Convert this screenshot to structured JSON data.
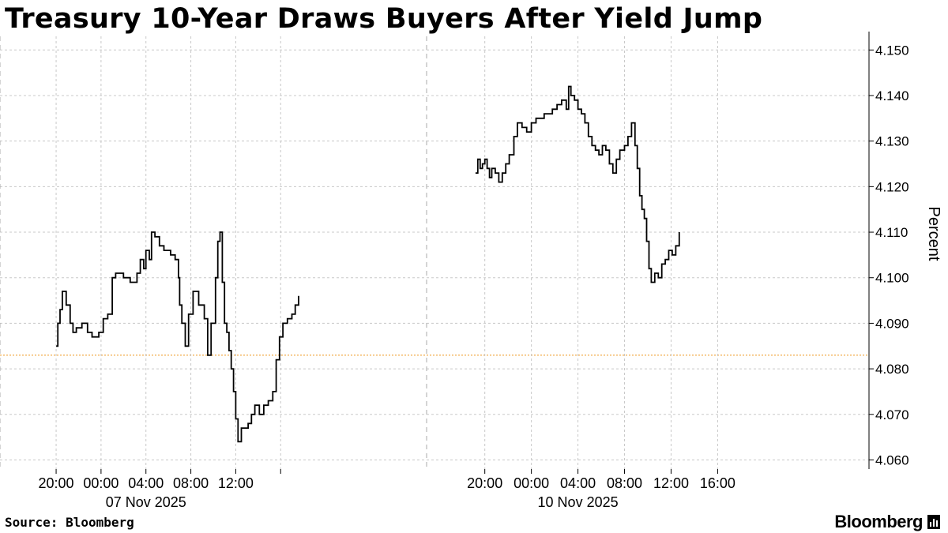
{
  "title": "Treasury 10-Year Draws Buyers After Yield Jump",
  "source": "Source: Bloomberg",
  "brand": "Bloomberg",
  "brand_icon": "bloomberg-logo-icon",
  "colors": {
    "line": "#000000",
    "reference": "#f0a030",
    "grid": "#c8c8c8",
    "text": "#000000"
  },
  "chart_data": {
    "type": "line",
    "title": "Treasury 10-Year Draws Buyers After Yield Jump",
    "ylabel": "Percent",
    "ylim": [
      4.058,
      4.153
    ],
    "yticks": [
      "4.060",
      "4.070",
      "4.080",
      "4.090",
      "4.100",
      "4.110",
      "4.120",
      "4.130",
      "4.140",
      "4.150"
    ],
    "ytick_values": [
      4.06,
      4.07,
      4.08,
      4.09,
      4.1,
      4.11,
      4.12,
      4.13,
      4.14,
      4.15
    ],
    "reference_line": 4.083,
    "grid": true,
    "panels": [
      {
        "date_label": "07 Nov 2025",
        "xlim": [
          -5,
          33
        ],
        "xticks": [
          {
            "h": 0,
            "label": "20:00"
          },
          {
            "h": 4,
            "label": "00:00"
          },
          {
            "h": 8,
            "label": "04:00"
          },
          {
            "h": 12,
            "label": "08:00"
          },
          {
            "h": 16,
            "label": "12:00"
          },
          {
            "h": 20,
            "label": ""
          }
        ],
        "series": [
          [
            0.0,
            4.085
          ],
          [
            0.15,
            4.09
          ],
          [
            0.35,
            4.093
          ],
          [
            0.55,
            4.097
          ],
          [
            0.9,
            4.094
          ],
          [
            1.25,
            4.09
          ],
          [
            1.5,
            4.088
          ],
          [
            1.8,
            4.089
          ],
          [
            2.0,
            4.089
          ],
          [
            2.3,
            4.09
          ],
          [
            2.8,
            4.088
          ],
          [
            3.2,
            4.087
          ],
          [
            3.5,
            4.087
          ],
          [
            3.8,
            4.088
          ],
          [
            4.2,
            4.091
          ],
          [
            4.6,
            4.092
          ],
          [
            5.0,
            4.1
          ],
          [
            5.3,
            4.101
          ],
          [
            5.6,
            4.101
          ],
          [
            6.0,
            4.1
          ],
          [
            6.6,
            4.099
          ],
          [
            7.2,
            4.101
          ],
          [
            7.5,
            4.104
          ],
          [
            7.8,
            4.102
          ],
          [
            8.0,
            4.106
          ],
          [
            8.3,
            4.104
          ],
          [
            8.5,
            4.11
          ],
          [
            8.8,
            4.109
          ],
          [
            9.2,
            4.107
          ],
          [
            9.6,
            4.106
          ],
          [
            10.2,
            4.105
          ],
          [
            10.6,
            4.104
          ],
          [
            10.9,
            4.1
          ],
          [
            11.0,
            4.094
          ],
          [
            11.2,
            4.09
          ],
          [
            11.5,
            4.085
          ],
          [
            11.8,
            4.092
          ],
          [
            12.2,
            4.097
          ],
          [
            12.7,
            4.094
          ],
          [
            13.2,
            4.091
          ],
          [
            13.5,
            4.083
          ],
          [
            13.8,
            4.09
          ],
          [
            14.2,
            4.1
          ],
          [
            14.4,
            4.108
          ],
          [
            14.6,
            4.11
          ],
          [
            14.8,
            4.099
          ],
          [
            15.0,
            4.09
          ],
          [
            15.2,
            4.088
          ],
          [
            15.4,
            4.084
          ],
          [
            15.6,
            4.08
          ],
          [
            15.8,
            4.075
          ],
          [
            16.0,
            4.069
          ],
          [
            16.2,
            4.064
          ],
          [
            16.5,
            4.067
          ],
          [
            16.8,
            4.067
          ],
          [
            17.1,
            4.068
          ],
          [
            17.4,
            4.07
          ],
          [
            17.7,
            4.072
          ],
          [
            18.1,
            4.07
          ],
          [
            18.5,
            4.072
          ],
          [
            18.9,
            4.073
          ],
          [
            19.3,
            4.075
          ],
          [
            19.6,
            4.082
          ],
          [
            19.9,
            4.087
          ],
          [
            20.2,
            4.09
          ],
          [
            20.6,
            4.091
          ],
          [
            21.0,
            4.092
          ],
          [
            21.3,
            4.094
          ],
          [
            21.6,
            4.096
          ]
        ]
      },
      {
        "date_label": "10 Nov 2025",
        "xlim": [
          -5,
          33
        ],
        "xticks": [
          {
            "h": 0,
            "label": "20:00"
          },
          {
            "h": 4,
            "label": "00:00"
          },
          {
            "h": 8,
            "label": "04:00"
          },
          {
            "h": 12,
            "label": "08:00"
          },
          {
            "h": 16,
            "label": "12:00"
          },
          {
            "h": 20,
            "label": "16:00"
          }
        ],
        "series": [
          [
            -0.8,
            4.123
          ],
          [
            -0.6,
            4.126
          ],
          [
            -0.4,
            4.124
          ],
          [
            -0.2,
            4.125
          ],
          [
            0.0,
            4.126
          ],
          [
            0.2,
            4.124
          ],
          [
            0.4,
            4.122
          ],
          [
            0.6,
            4.124
          ],
          [
            0.9,
            4.123
          ],
          [
            1.2,
            4.121
          ],
          [
            1.5,
            4.123
          ],
          [
            1.8,
            4.125
          ],
          [
            2.1,
            4.127
          ],
          [
            2.5,
            4.131
          ],
          [
            2.8,
            4.134
          ],
          [
            3.2,
            4.133
          ],
          [
            3.6,
            4.132
          ],
          [
            4.0,
            4.134
          ],
          [
            4.4,
            4.135
          ],
          [
            4.8,
            4.135
          ],
          [
            5.1,
            4.136
          ],
          [
            5.5,
            4.136
          ],
          [
            5.8,
            4.137
          ],
          [
            6.2,
            4.138
          ],
          [
            6.6,
            4.139
          ],
          [
            7.0,
            4.137
          ],
          [
            7.2,
            4.142
          ],
          [
            7.4,
            4.14
          ],
          [
            7.7,
            4.139
          ],
          [
            8.0,
            4.137
          ],
          [
            8.3,
            4.136
          ],
          [
            8.6,
            4.134
          ],
          [
            8.9,
            4.131
          ],
          [
            9.2,
            4.129
          ],
          [
            9.5,
            4.128
          ],
          [
            9.8,
            4.127
          ],
          [
            10.1,
            4.129
          ],
          [
            10.4,
            4.128
          ],
          [
            10.7,
            4.125
          ],
          [
            11.0,
            4.123
          ],
          [
            11.3,
            4.126
          ],
          [
            11.6,
            4.128
          ],
          [
            12.0,
            4.129
          ],
          [
            12.3,
            4.131
          ],
          [
            12.6,
            4.134
          ],
          [
            12.9,
            4.129
          ],
          [
            13.1,
            4.124
          ],
          [
            13.3,
            4.118
          ],
          [
            13.5,
            4.115
          ],
          [
            13.7,
            4.113
          ],
          [
            13.9,
            4.108
          ],
          [
            14.1,
            4.102
          ],
          [
            14.3,
            4.099
          ],
          [
            14.6,
            4.101
          ],
          [
            14.9,
            4.1
          ],
          [
            15.2,
            4.103
          ],
          [
            15.5,
            4.104
          ],
          [
            15.8,
            4.106
          ],
          [
            16.1,
            4.105
          ],
          [
            16.4,
            4.107
          ],
          [
            16.7,
            4.11
          ]
        ]
      }
    ]
  }
}
